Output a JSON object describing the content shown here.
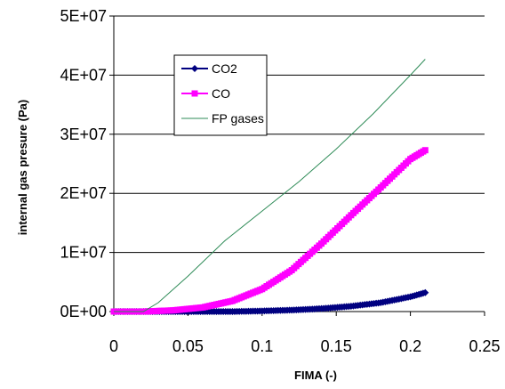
{
  "chart_data": {
    "type": "line",
    "xlabel": "FIMA (-)",
    "ylabel": "internal gas presure (Pa)",
    "xlim": [
      0,
      0.25
    ],
    "ylim": [
      0,
      50000000
    ],
    "x_ticks": [
      "0",
      "0.05",
      "0.1",
      "0.15",
      "0.2",
      "0.25"
    ],
    "y_ticks": [
      "0E+00",
      "1E+07",
      "2E+07",
      "3E+07",
      "4E+07",
      "5E+07"
    ],
    "grid": "horizontal",
    "legend_position": "upper-left inside plot",
    "series": [
      {
        "name": "CO2",
        "color": "#000080",
        "marker": "diamond",
        "x": [
          0,
          0.02,
          0.04,
          0.06,
          0.08,
          0.1,
          0.12,
          0.14,
          0.16,
          0.18,
          0.2,
          0.21
        ],
        "y": [
          0,
          0,
          0,
          0,
          0,
          100000,
          250000,
          500000,
          900000,
          1500000,
          2500000,
          3200000
        ]
      },
      {
        "name": "CO",
        "color": "#ff00ff",
        "marker": "square",
        "x": [
          0,
          0.02,
          0.04,
          0.06,
          0.08,
          0.1,
          0.12,
          0.14,
          0.16,
          0.18,
          0.2,
          0.21
        ],
        "y": [
          0,
          0,
          200000,
          700000,
          1800000,
          3800000,
          7000000,
          11500000,
          16300000,
          21000000,
          25800000,
          27300000
        ]
      },
      {
        "name": "FP gases",
        "color": "#2e8b57",
        "marker": "none",
        "x": [
          0,
          0.02,
          0.03,
          0.05,
          0.075,
          0.1,
          0.125,
          0.15,
          0.175,
          0.2,
          0.21
        ],
        "y": [
          0,
          0,
          1500000,
          6000000,
          12000000,
          17000000,
          22000000,
          27500000,
          33500000,
          40000000,
          42700000
        ]
      }
    ]
  }
}
